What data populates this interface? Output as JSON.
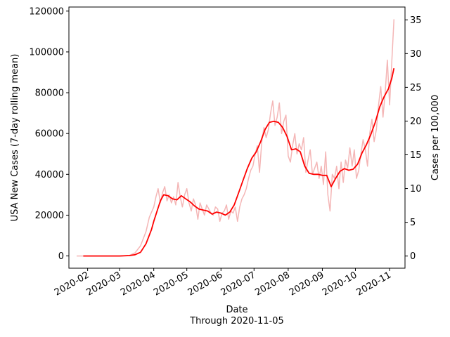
{
  "chart_data": {
    "type": "line",
    "title": "",
    "xlabel": "Date",
    "xlabel_sub": "Through 2020-11-05",
    "ylabel": "USA New Cases (7-day rolling mean)",
    "ylabel_right": "Cases per 100,000",
    "xlim": [
      "2020-01-15",
      "2020-11-15"
    ],
    "ylim": [
      -6000,
      122000
    ],
    "ylim_right": [
      -1.8,
      36.9
    ],
    "x_ticks": [
      "2020-02",
      "2020-03",
      "2020-04",
      "2020-05",
      "2020-06",
      "2020-07",
      "2020-08",
      "2020-09",
      "2020-10",
      "2020-11"
    ],
    "y_ticks": [
      0,
      20000,
      40000,
      60000,
      80000,
      100000,
      120000
    ],
    "y_ticks_right": [
      0,
      5,
      10,
      15,
      20,
      25,
      30,
      35
    ],
    "grid": false,
    "legend": "none",
    "series": [
      {
        "role": "daily",
        "color": "#f4b6b6",
        "x": [
          "2020-01-22",
          "2020-02-01",
          "2020-02-15",
          "2020-03-01",
          "2020-03-10",
          "2020-03-15",
          "2020-03-20",
          "2020-03-25",
          "2020-03-28",
          "2020-04-01",
          "2020-04-03",
          "2020-04-05",
          "2020-04-07",
          "2020-04-09",
          "2020-04-11",
          "2020-04-13",
          "2020-04-15",
          "2020-04-17",
          "2020-04-19",
          "2020-04-21",
          "2020-04-23",
          "2020-04-25",
          "2020-04-27",
          "2020-04-29",
          "2020-05-01",
          "2020-05-03",
          "2020-05-05",
          "2020-05-07",
          "2020-05-09",
          "2020-05-11",
          "2020-05-13",
          "2020-05-15",
          "2020-05-17",
          "2020-05-19",
          "2020-05-21",
          "2020-05-23",
          "2020-05-25",
          "2020-05-27",
          "2020-05-29",
          "2020-05-31",
          "2020-06-02",
          "2020-06-04",
          "2020-06-06",
          "2020-06-08",
          "2020-06-10",
          "2020-06-12",
          "2020-06-14",
          "2020-06-16",
          "2020-06-18",
          "2020-06-20",
          "2020-06-22",
          "2020-06-24",
          "2020-06-26",
          "2020-06-28",
          "2020-06-30",
          "2020-07-02",
          "2020-07-04",
          "2020-07-06",
          "2020-07-08",
          "2020-07-10",
          "2020-07-12",
          "2020-07-14",
          "2020-07-16",
          "2020-07-18",
          "2020-07-20",
          "2020-07-22",
          "2020-07-24",
          "2020-07-26",
          "2020-07-28",
          "2020-07-30",
          "2020-08-01",
          "2020-08-03",
          "2020-08-05",
          "2020-08-07",
          "2020-08-09",
          "2020-08-11",
          "2020-08-13",
          "2020-08-15",
          "2020-08-17",
          "2020-08-19",
          "2020-08-21",
          "2020-08-23",
          "2020-08-25",
          "2020-08-27",
          "2020-08-29",
          "2020-08-31",
          "2020-09-02",
          "2020-09-04",
          "2020-09-06",
          "2020-09-08",
          "2020-09-10",
          "2020-09-12",
          "2020-09-14",
          "2020-09-16",
          "2020-09-18",
          "2020-09-20",
          "2020-09-22",
          "2020-09-24",
          "2020-09-26",
          "2020-09-28",
          "2020-09-30",
          "2020-10-02",
          "2020-10-04",
          "2020-10-06",
          "2020-10-08",
          "2020-10-10",
          "2020-10-12",
          "2020-10-14",
          "2020-10-16",
          "2020-10-18",
          "2020-10-20",
          "2020-10-22",
          "2020-10-24",
          "2020-10-26",
          "2020-10-28",
          "2020-10-30",
          "2020-11-01",
          "2020-11-03",
          "2020-11-05"
        ],
        "y": [
          0,
          0,
          0,
          0,
          300,
          1500,
          5000,
          12000,
          19000,
          24000,
          29000,
          33000,
          26000,
          31000,
          34000,
          27000,
          30000,
          26000,
          29000,
          25000,
          36000,
          29000,
          24000,
          30000,
          33000,
          26000,
          22000,
          28000,
          25000,
          18000,
          26000,
          23000,
          20000,
          25000,
          23000,
          21000,
          20000,
          24000,
          23000,
          17000,
          21000,
          22000,
          25000,
          18000,
          22000,
          21000,
          24000,
          17000,
          24000,
          28000,
          30000,
          33000,
          38000,
          42000,
          44000,
          50000,
          54000,
          41000,
          56000,
          63000,
          58000,
          62000,
          70000,
          76000,
          64000,
          68000,
          75000,
          60000,
          66000,
          69000,
          49000,
          46000,
          54000,
          60000,
          50000,
          55000,
          52000,
          58000,
          41000,
          47000,
          52000,
          40000,
          43000,
          46000,
          38000,
          44000,
          35000,
          51000,
          30000,
          22000,
          40000,
          38000,
          44000,
          33000,
          46000,
          36000,
          47000,
          43000,
          53000,
          44000,
          52000,
          38000,
          42000,
          50000,
          57000,
          52000,
          44000,
          60000,
          67000,
          56000,
          62000,
          74000,
          83000,
          68000,
          80000,
          96000,
          74000,
          95000,
          116000
        ]
      },
      {
        "role": "7-day rolling mean",
        "color": "#ff0000",
        "x": [
          "2020-01-28",
          "2020-02-15",
          "2020-03-01",
          "2020-03-10",
          "2020-03-15",
          "2020-03-20",
          "2020-03-25",
          "2020-03-30",
          "2020-04-01",
          "2020-04-04",
          "2020-04-07",
          "2020-04-10",
          "2020-04-14",
          "2020-04-18",
          "2020-04-22",
          "2020-04-26",
          "2020-04-30",
          "2020-05-04",
          "2020-05-08",
          "2020-05-12",
          "2020-05-16",
          "2020-05-20",
          "2020-05-24",
          "2020-05-28",
          "2020-06-01",
          "2020-06-05",
          "2020-06-09",
          "2020-06-13",
          "2020-06-17",
          "2020-06-21",
          "2020-06-25",
          "2020-06-29",
          "2020-07-03",
          "2020-07-07",
          "2020-07-11",
          "2020-07-15",
          "2020-07-19",
          "2020-07-23",
          "2020-07-27",
          "2020-07-31",
          "2020-08-04",
          "2020-08-08",
          "2020-08-12",
          "2020-08-16",
          "2020-08-20",
          "2020-08-24",
          "2020-08-28",
          "2020-09-01",
          "2020-09-05",
          "2020-09-09",
          "2020-09-13",
          "2020-09-17",
          "2020-09-21",
          "2020-09-25",
          "2020-09-29",
          "2020-10-03",
          "2020-10-07",
          "2020-10-11",
          "2020-10-15",
          "2020-10-19",
          "2020-10-23",
          "2020-10-27",
          "2020-10-31",
          "2020-11-03",
          "2020-11-05"
        ],
        "y": [
          0,
          0,
          0,
          200,
          600,
          1800,
          6000,
          13000,
          17000,
          22000,
          27000,
          30000,
          29500,
          28000,
          27500,
          29500,
          28000,
          26500,
          24500,
          23000,
          22500,
          22000,
          20500,
          21500,
          21000,
          20000,
          21500,
          25000,
          31000,
          37000,
          43000,
          48000,
          51000,
          56000,
          62000,
          65500,
          66000,
          65500,
          63000,
          58500,
          52000,
          52500,
          51000,
          44000,
          40500,
          40000,
          40000,
          39500,
          39500,
          34000,
          38000,
          41500,
          42800,
          42000,
          42500,
          45000,
          50500,
          54500,
          59500,
          65500,
          73000,
          78000,
          82000,
          87000,
          92000
        ]
      }
    ]
  }
}
